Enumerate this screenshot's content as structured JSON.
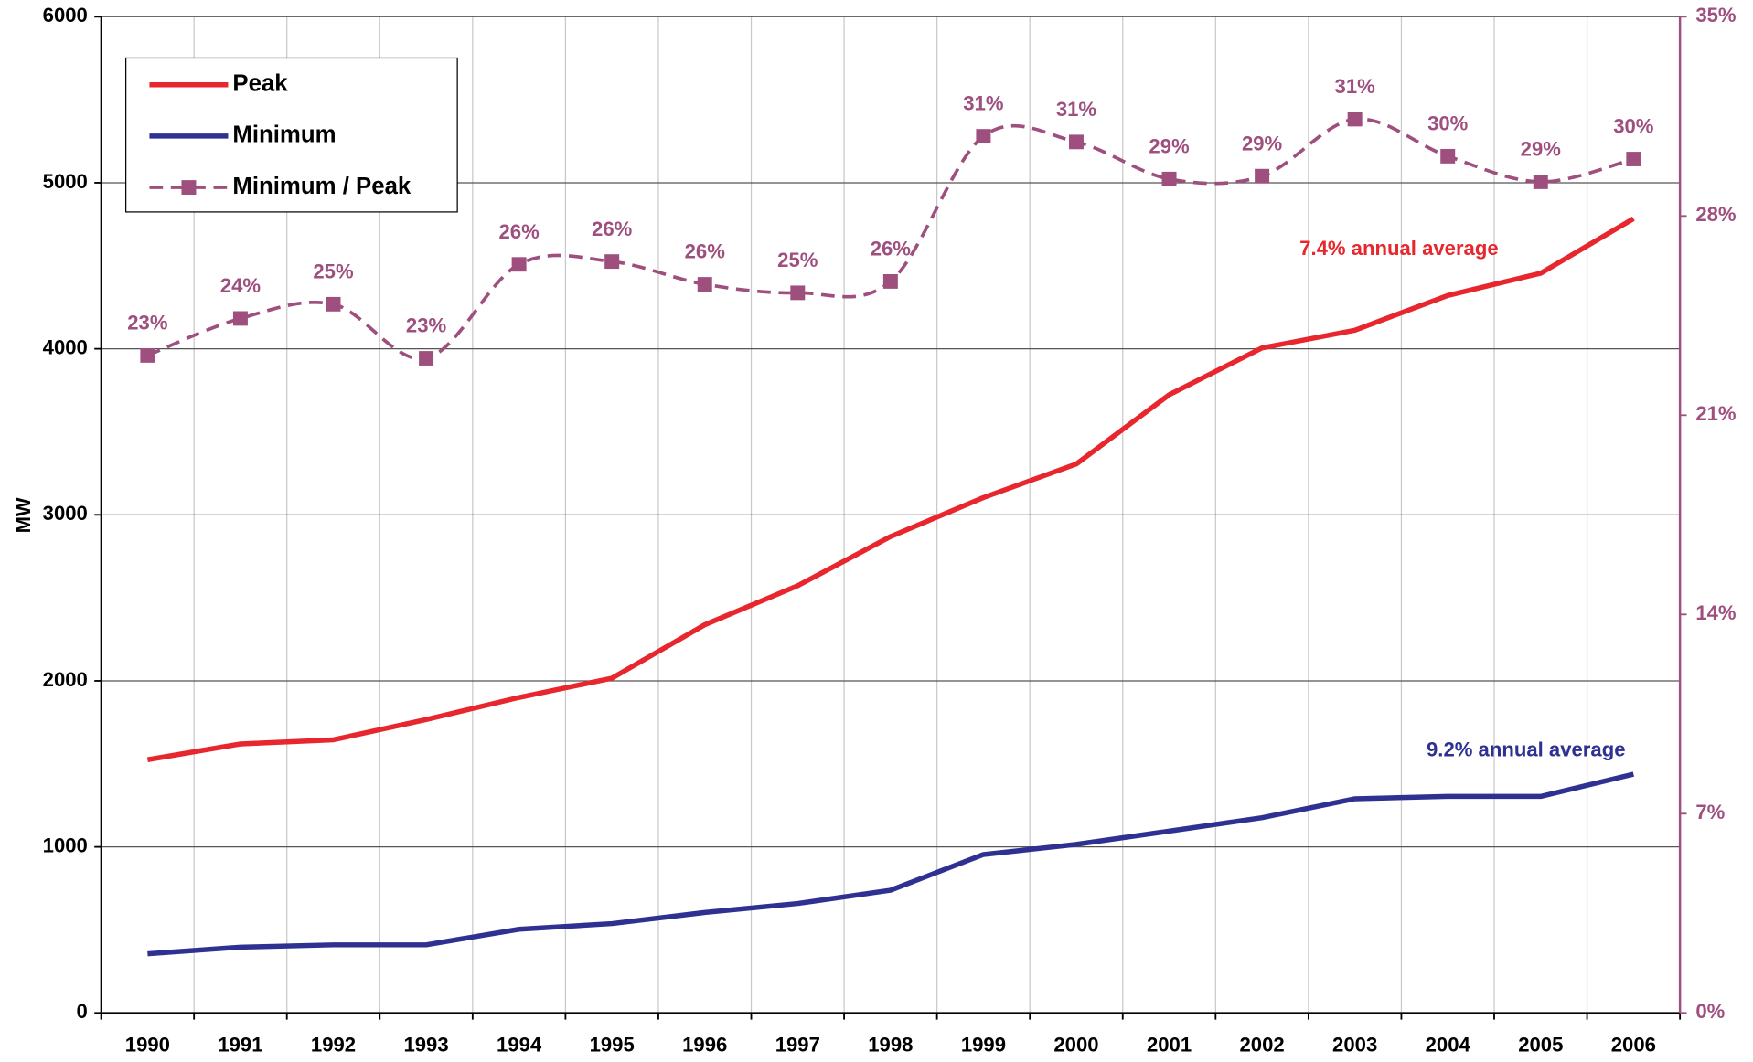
{
  "chart_data": {
    "type": "line",
    "y_label": "MW",
    "categories": [
      "1990",
      "1991",
      "1992",
      "1993",
      "1994",
      "1995",
      "1996",
      "1997",
      "1998",
      "1999",
      "2000",
      "2001",
      "2002",
      "2003",
      "2004",
      "2005",
      "2006"
    ],
    "series": [
      {
        "name": "Peak",
        "color": "#e8262d",
        "axis": "y",
        "dashed": false,
        "values": [
          1525,
          1620,
          1645,
          1767,
          1900,
          2016,
          2338,
          2573,
          2869,
          3104,
          3306,
          3723,
          4005,
          4112,
          4321,
          4455,
          4784
        ]
      },
      {
        "name": "Minimum",
        "color": "#2e3192",
        "axis": "y",
        "dashed": false,
        "values": [
          356,
          396,
          410,
          410,
          504,
          538,
          605,
          659,
          739,
          954,
          1015,
          1095,
          1176,
          1290,
          1304,
          1304,
          1438
        ]
      },
      {
        "name": "Minimum / Peak",
        "color": "#9e4f7e",
        "axis": "y2",
        "dashed": true,
        "marker": "square",
        "smooth": true,
        "values": [
          23.1,
          24.4,
          24.9,
          23.0,
          26.3,
          26.4,
          25.6,
          25.3,
          25.7,
          30.8,
          30.6,
          29.3,
          29.4,
          31.4,
          30.1,
          29.2,
          30.0
        ],
        "value_labels": [
          "23%",
          "24%",
          "25%",
          "23%",
          "26%",
          "26%",
          "26%",
          "25%",
          "26%",
          "31%",
          "31%",
          "29%",
          "29%",
          "31%",
          "30%",
          "29%",
          "30%"
        ]
      }
    ],
    "annotations": [
      {
        "text": "7.4% annual average",
        "color": "#e8262d"
      },
      {
        "text": "9.2% annual average",
        "color": "#2e3192"
      }
    ],
    "ylim": [
      0,
      6000
    ],
    "yticks": [
      0,
      1000,
      2000,
      3000,
      4000,
      5000,
      6000
    ],
    "y2lim": [
      0,
      35
    ],
    "y2ticks": [
      {
        "value": 0,
        "label": "0%"
      },
      {
        "value": 7,
        "label": "7%"
      },
      {
        "value": 14,
        "label": "14%"
      },
      {
        "value": 21,
        "label": "21%"
      },
      {
        "value": 28,
        "label": "28%"
      },
      {
        "value": 35,
        "label": "35%"
      }
    ],
    "y2color": "#9e4f7e",
    "grid": true,
    "legend": "upper left"
  }
}
